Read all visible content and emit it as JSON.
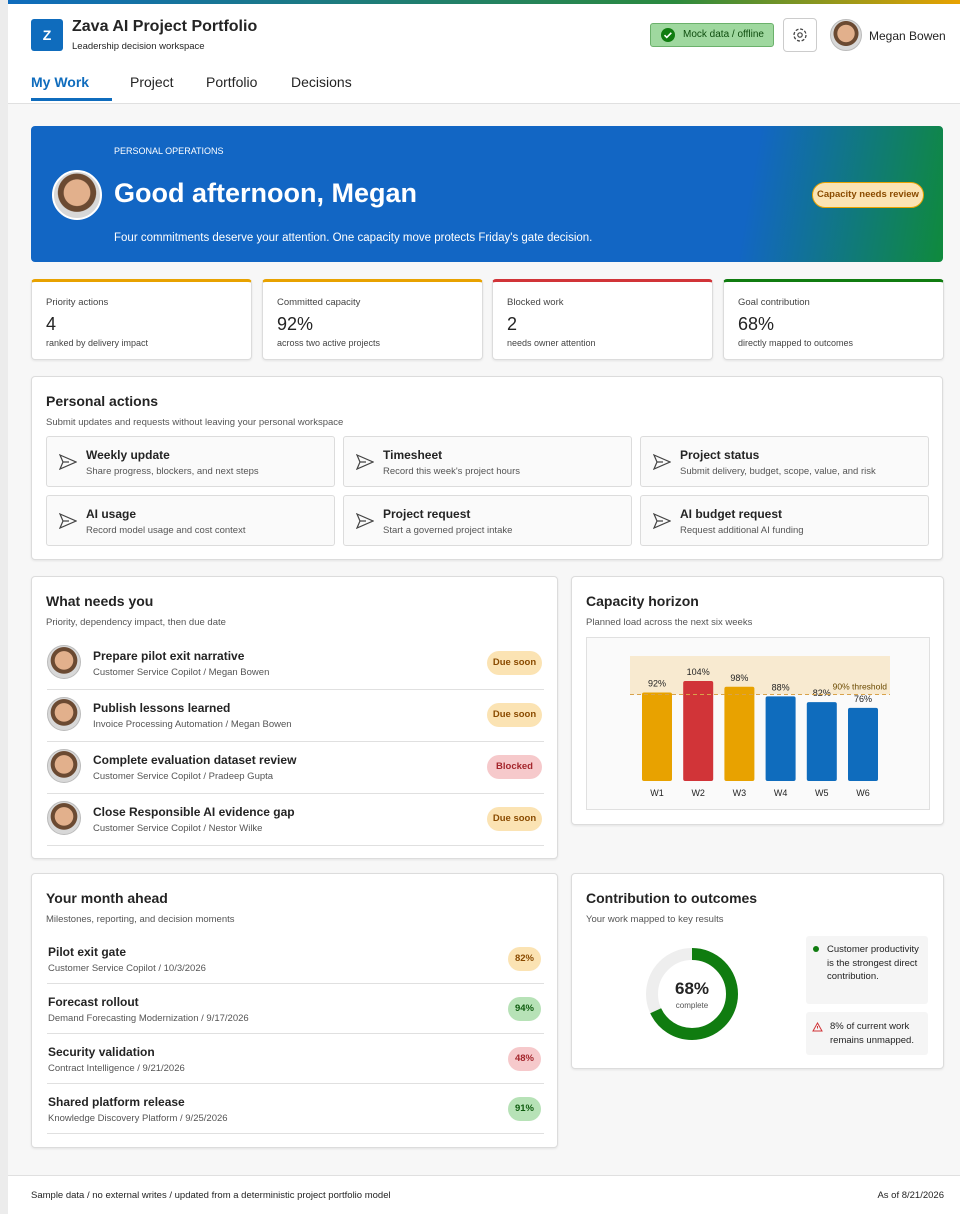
{
  "header": {
    "logo": "Z",
    "title": "Zava AI Project Portfolio",
    "subtitle": "Leadership decision workspace",
    "status": "Mock data / offline",
    "user": "Megan Bowen"
  },
  "nav": [
    "My Work",
    "Project",
    "Portfolio",
    "Decisions"
  ],
  "hero": {
    "eyebrow": "PERSONAL OPERATIONS",
    "greeting": "Good afternoon, Megan",
    "message": "Four commitments deserve your attention. One capacity move protects Friday's gate decision.",
    "badge": "Capacity needs review"
  },
  "kpis": [
    {
      "label": "Priority actions",
      "value": "4",
      "note": "ranked by delivery impact",
      "color": "#e8a200"
    },
    {
      "label": "Committed capacity",
      "value": "92%",
      "note": "across two active projects",
      "color": "#e8a200"
    },
    {
      "label": "Blocked work",
      "value": "2",
      "note": "needs owner attention",
      "color": "#d13438"
    },
    {
      "label": "Goal contribution",
      "value": "68%",
      "note": "directly mapped to outcomes",
      "color": "#107c10"
    }
  ],
  "personal_actions": {
    "title": "Personal actions",
    "subtitle": "Submit updates and requests without leaving your personal workspace",
    "items": [
      {
        "title": "Weekly update",
        "description": "Share progress, blockers, and next steps"
      },
      {
        "title": "Timesheet",
        "description": "Record this week's project hours"
      },
      {
        "title": "Project status",
        "description": "Submit delivery, budget, scope, value, and risk"
      },
      {
        "title": "AI usage",
        "description": "Record model usage and cost context"
      },
      {
        "title": "Project request",
        "description": "Start a governed project intake"
      },
      {
        "title": "AI budget request",
        "description": "Request additional AI funding"
      }
    ]
  },
  "needs": {
    "title": "What needs you",
    "subtitle": "Priority, dependency impact, then due date",
    "items": [
      {
        "title": "Prepare pilot exit narrative",
        "detail": "Customer Service Copilot / Megan Bowen",
        "status": "Due soon",
        "tone": "warning"
      },
      {
        "title": "Publish lessons learned",
        "detail": "Invoice Processing Automation / Megan Bowen",
        "status": "Due soon",
        "tone": "warning"
      },
      {
        "title": "Complete evaluation dataset review",
        "detail": "Customer Service Copilot / Pradeep Gupta",
        "status": "Blocked",
        "tone": "danger"
      },
      {
        "title": "Close Responsible AI evidence gap",
        "detail": "Customer Service Copilot / Nestor Wilke",
        "status": "Due soon",
        "tone": "warning"
      }
    ]
  },
  "month": {
    "title": "Your month ahead",
    "subtitle": "Milestones, reporting, and decision moments",
    "items": [
      {
        "title": "Pilot exit gate",
        "detail": "Customer Service Copilot / 10/3/2026",
        "percent": "82%",
        "tone": "warning"
      },
      {
        "title": "Forecast rollout",
        "detail": "Demand Forecasting Modernization / 9/17/2026",
        "percent": "94%",
        "tone": "success"
      },
      {
        "title": "Security validation",
        "detail": "Contract Intelligence / 9/21/2026",
        "percent": "48%",
        "tone": "danger"
      },
      {
        "title": "Shared platform release",
        "detail": "Knowledge Discovery Platform / 9/25/2026",
        "percent": "91%",
        "tone": "success"
      }
    ]
  },
  "chart_data": [
    {
      "type": "bar",
      "title": "Capacity horizon",
      "subtitle": "Planned load across the next six weeks",
      "categories": [
        "W1",
        "W2",
        "W3",
        "W4",
        "W5",
        "W6"
      ],
      "values": [
        92,
        104,
        98,
        88,
        82,
        76
      ],
      "value_labels": [
        "92%",
        "104%",
        "98%",
        "88%",
        "82%",
        "76%"
      ],
      "colors": [
        "#e8a200",
        "#d13438",
        "#e8a200",
        "#0f6cbd",
        "#0f6cbd",
        "#0f6cbd"
      ],
      "ylim": [
        0,
        130
      ],
      "threshold": {
        "value": 90,
        "label": "90% threshold"
      }
    },
    {
      "type": "donut",
      "title": "Contribution to outcomes",
      "subtitle": "Your work mapped to key results",
      "values": [
        68
      ],
      "value_labels": [
        "68%"
      ],
      "label": "complete",
      "lim": [
        0,
        100
      ],
      "color": "#107c10",
      "notes": [
        "Customer productivity is the strongest direct contribution.",
        "8% of current work remains unmapped."
      ]
    }
  ],
  "footer": {
    "note": "Sample data / no external writes / updated from a deterministic project portfolio model",
    "date": "As of 8/21/2026"
  }
}
